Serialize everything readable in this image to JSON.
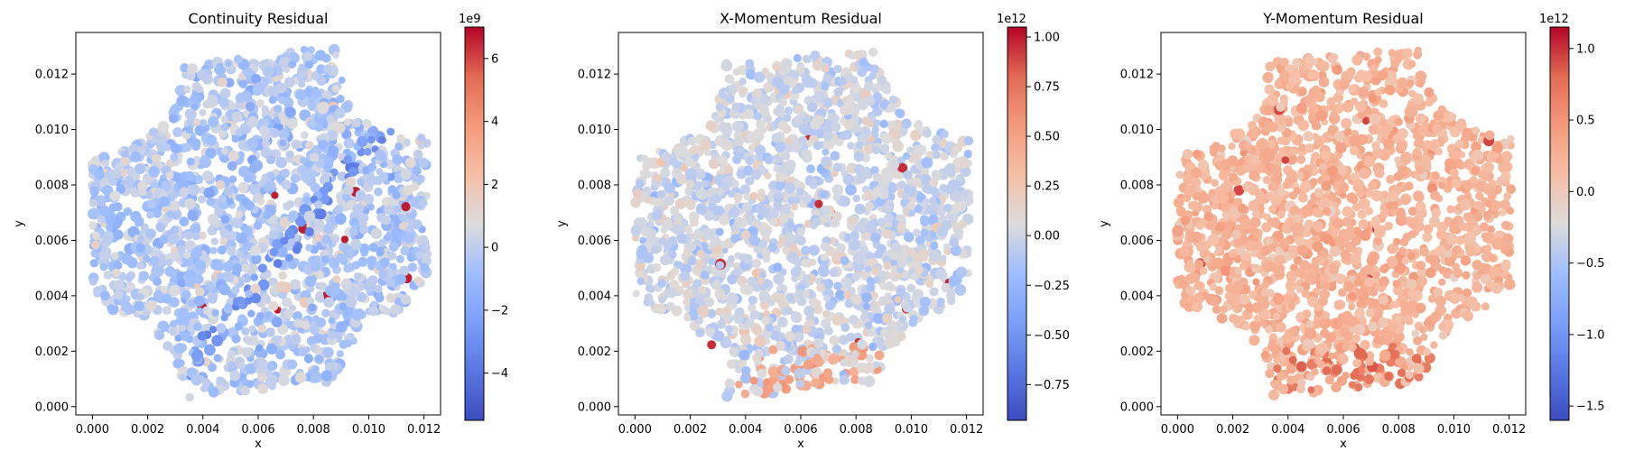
{
  "chart_data": [
    {
      "type": "scatter",
      "title": "Continuity Residual",
      "xlabel": "x",
      "ylabel": "y",
      "xlim": [
        -0.0006,
        0.0126
      ],
      "ylim": [
        -0.0003,
        0.0135
      ],
      "xticks": [
        0.0,
        0.002,
        0.004,
        0.006,
        0.008,
        0.01,
        0.012
      ],
      "xtick_labels": [
        "0.000",
        "0.002",
        "0.004",
        "0.006",
        "0.008",
        "0.010",
        "0.012"
      ],
      "yticks": [
        0.0,
        0.002,
        0.004,
        0.006,
        0.008,
        0.01,
        0.012
      ],
      "ytick_labels": [
        "0.000",
        "0.002",
        "0.004",
        "0.006",
        "0.008",
        "0.010",
        "0.012"
      ],
      "colorbar": {
        "cmap": "coolwarm",
        "vmin": -5.5,
        "vmax": 7.0,
        "ticks": [
          -4,
          -2,
          0,
          2,
          4,
          6
        ],
        "tick_labels": [
          "−4",
          "−2",
          "0",
          "2",
          "4",
          "6"
        ],
        "exponent_label": "1e9"
      },
      "field": {
        "bias": 0.42,
        "spread": 0.12,
        "hot_band": "diagonal",
        "band_level": 0.22,
        "extreme_level": 0.97
      },
      "domain_shape": {
        "corners": [
          [
            0.0,
            0.0088
          ],
          [
            0.0033,
            0.0124
          ],
          [
            0.0087,
            0.013
          ],
          [
            0.0121,
            0.01
          ],
          [
            0.0121,
            0.0045
          ],
          [
            0.0087,
            0.0009
          ],
          [
            0.0033,
            0.0003
          ],
          [
            0.0,
            0.0033
          ]
        ],
        "notch_radius": 0.0033
      }
    },
    {
      "type": "scatter",
      "title": "X-Momentum Residual",
      "xlabel": "x",
      "ylabel": "y",
      "xlim": [
        -0.0006,
        0.0126
      ],
      "ylim": [
        -0.0003,
        0.0135
      ],
      "xticks": [
        0.0,
        0.002,
        0.004,
        0.006,
        0.008,
        0.01,
        0.012
      ],
      "xtick_labels": [
        "0.000",
        "0.002",
        "0.004",
        "0.006",
        "0.008",
        "0.010",
        "0.012"
      ],
      "yticks": [
        0.0,
        0.002,
        0.004,
        0.006,
        0.008,
        0.01,
        0.012
      ],
      "ytick_labels": [
        "0.000",
        "0.002",
        "0.004",
        "0.006",
        "0.008",
        "0.010",
        "0.012"
      ],
      "colorbar": {
        "cmap": "coolwarm",
        "vmin": -0.93,
        "vmax": 1.05,
        "ticks": [
          -0.75,
          -0.5,
          -0.25,
          0.0,
          0.25,
          0.5,
          0.75,
          1.0
        ],
        "tick_labels": [
          "−0.75",
          "−0.50",
          "−0.25",
          "0.00",
          "0.25",
          "0.50",
          "0.75",
          "1.00"
        ],
        "exponent_label": "1e12"
      },
      "field": {
        "bias": 0.47,
        "spread": 0.1,
        "hot_band": "bottom",
        "band_level": 0.72,
        "extreme_level": 0.95
      },
      "domain_shape": {
        "corners": [
          [
            0.0,
            0.0088
          ],
          [
            0.0033,
            0.0124
          ],
          [
            0.0087,
            0.013
          ],
          [
            0.0121,
            0.01
          ],
          [
            0.0121,
            0.0045
          ],
          [
            0.0087,
            0.0009
          ],
          [
            0.0033,
            0.0003
          ],
          [
            0.0,
            0.0033
          ]
        ],
        "notch_radius": 0.0033
      }
    },
    {
      "type": "scatter",
      "title": "Y-Momentum Residual",
      "xlabel": "x",
      "ylabel": "y",
      "xlim": [
        -0.0006,
        0.0126
      ],
      "ylim": [
        -0.0003,
        0.0135
      ],
      "xticks": [
        0.0,
        0.002,
        0.004,
        0.006,
        0.008,
        0.01,
        0.012
      ],
      "xtick_labels": [
        "0.000",
        "0.002",
        "0.004",
        "0.006",
        "0.008",
        "0.010",
        "0.012"
      ],
      "yticks": [
        0.0,
        0.002,
        0.004,
        0.006,
        0.008,
        0.01,
        0.012
      ],
      "ytick_labels": [
        "0.000",
        "0.002",
        "0.004",
        "0.006",
        "0.008",
        "0.010",
        "0.012"
      ],
      "colorbar": {
        "cmap": "coolwarm",
        "vmin": -1.6,
        "vmax": 1.15,
        "ticks": [
          -1.5,
          -1.0,
          -0.5,
          0.0,
          0.5,
          1.0
        ],
        "tick_labels": [
          "−1.5",
          "−1.0",
          "−0.5",
          "0.0",
          "0.5",
          "1.0"
        ],
        "exponent_label": "1e12"
      },
      "field": {
        "bias": 0.66,
        "spread": 0.08,
        "hot_band": "bottom",
        "band_level": 0.85,
        "extreme_level": 0.92
      },
      "domain_shape": {
        "corners": [
          [
            0.0,
            0.0088
          ],
          [
            0.0033,
            0.0124
          ],
          [
            0.0087,
            0.013
          ],
          [
            0.0121,
            0.01
          ],
          [
            0.0121,
            0.0045
          ],
          [
            0.0087,
            0.0009
          ],
          [
            0.0033,
            0.0003
          ],
          [
            0.0,
            0.0033
          ]
        ],
        "notch_radius": 0.0033
      }
    }
  ]
}
